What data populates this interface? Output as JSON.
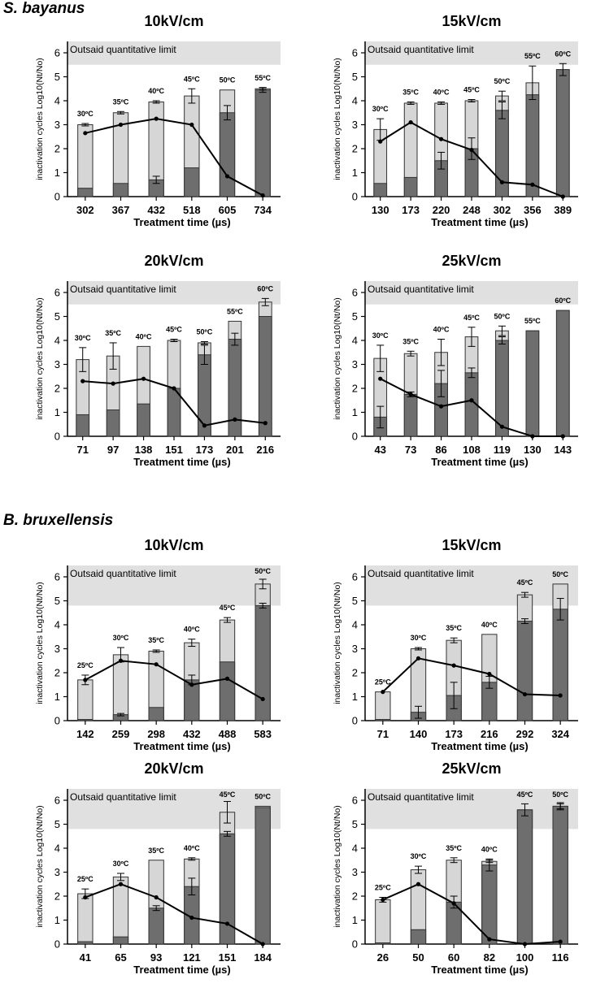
{
  "sections": [
    {
      "title": "S. bayanus"
    },
    {
      "title": "B. bruxellensis"
    }
  ],
  "chart_data": [
    {
      "section": "S. bayanus",
      "type": "bar",
      "stacked": true,
      "title": "10kV/cm",
      "ylabel": "inactivation cycles Log10(Nt/No)",
      "xlabel": "Treatment time (µs)",
      "ylim": [
        0,
        6
      ],
      "yticks": [
        0,
        1,
        2,
        3,
        4,
        5,
        6
      ],
      "limit_y": 5.5,
      "limit_label": "Outsaid quantitative limit",
      "categories": [
        "302",
        "367",
        "432",
        "518",
        "605",
        "734"
      ],
      "temps": [
        "30ºC",
        "35ºC",
        "40ºC",
        "45ºC",
        "50ºC",
        "55ºC"
      ],
      "series": [
        {
          "name": "dark",
          "values": [
            0.35,
            0.55,
            0.7,
            1.2,
            3.5,
            4.45
          ],
          "errors": [
            0,
            0,
            0.15,
            0,
            0.3,
            0.1
          ]
        },
        {
          "name": "total",
          "values": [
            3.0,
            3.5,
            3.95,
            4.2,
            4.45,
            4.5
          ],
          "errors": [
            0.05,
            0.05,
            0.05,
            0.3,
            0,
            0.05
          ]
        },
        {
          "name": "line",
          "values": [
            2.65,
            3.0,
            3.25,
            3.0,
            0.85,
            0.05
          ]
        }
      ]
    },
    {
      "section": "S. bayanus",
      "type": "bar",
      "stacked": true,
      "title": "15kV/cm",
      "ylabel": "inactivation cycles Log10(Nt/No)",
      "xlabel": "Treatment time (µs)",
      "ylim": [
        0,
        6
      ],
      "yticks": [
        0,
        1,
        2,
        3,
        4,
        5,
        6
      ],
      "limit_y": 5.5,
      "limit_label": "Outsaid quantitative limit",
      "categories": [
        "130",
        "173",
        "220",
        "248",
        "302",
        "356",
        "389"
      ],
      "temps": [
        "30ºC",
        "35ºC",
        "40ºC",
        "45ºC",
        "50ºC",
        "55ºC",
        "60ºC"
      ],
      "series": [
        {
          "name": "dark",
          "values": [
            0.55,
            0.8,
            1.5,
            2.0,
            3.6,
            4.25,
            5.3
          ],
          "errors": [
            0,
            0,
            0.35,
            0.45,
            0.35,
            0,
            0.25
          ]
        },
        {
          "name": "total",
          "values": [
            2.8,
            3.9,
            3.9,
            4.0,
            4.2,
            4.75,
            5.3
          ],
          "errors": [
            0.45,
            0.05,
            0.05,
            0.05,
            0.2,
            0.7,
            0
          ]
        },
        {
          "name": "line",
          "values": [
            2.3,
            3.1,
            2.4,
            1.95,
            0.6,
            0.5,
            0.0
          ]
        }
      ]
    },
    {
      "section": "S. bayanus",
      "type": "bar",
      "stacked": true,
      "title": "20kV/cm",
      "ylabel": "inactivation cycles Log10(Nt/No)",
      "xlabel": "Treatment time (µs)",
      "ylim": [
        0,
        6
      ],
      "yticks": [
        0,
        1,
        2,
        3,
        4,
        5,
        6
      ],
      "limit_y": 5.5,
      "limit_label": "Outsaid quantitative limit",
      "categories": [
        "71",
        "97",
        "138",
        "151",
        "173",
        "201",
        "216"
      ],
      "temps": [
        "30ºC",
        "35ºC",
        "40ºC",
        "45ºC",
        "50ºC",
        "55ºC",
        "60ºC"
      ],
      "series": [
        {
          "name": "dark",
          "values": [
            0.9,
            1.1,
            1.35,
            2.0,
            3.4,
            4.05,
            5.0
          ],
          "errors": [
            0,
            0,
            0,
            0,
            0.4,
            0.25,
            0
          ]
        },
        {
          "name": "total",
          "values": [
            3.2,
            3.35,
            3.75,
            4.0,
            3.9,
            4.8,
            5.6
          ],
          "errors": [
            0.5,
            0.55,
            0,
            0.05,
            0.05,
            0,
            0.15
          ]
        },
        {
          "name": "line",
          "values": [
            2.3,
            2.2,
            2.4,
            2.0,
            0.45,
            0.7,
            0.55
          ]
        }
      ]
    },
    {
      "section": "S. bayanus",
      "type": "bar",
      "stacked": true,
      "title": "25kV/cm",
      "ylabel": "inactivation cycles Log10(Nt/No)",
      "xlabel": "Treatment time (µs)",
      "ylim": [
        0,
        6
      ],
      "yticks": [
        0,
        1,
        2,
        3,
        4,
        5,
        6
      ],
      "limit_y": 5.5,
      "limit_label": "Outsaid quantitative limit",
      "categories": [
        "43",
        "73",
        "86",
        "108",
        "119",
        "130",
        "143"
      ],
      "temps": [
        "30ºC",
        "35ºC",
        "40ºC",
        "45ºC",
        "50ºC",
        "55ºC",
        "60ºC"
      ],
      "series": [
        {
          "name": "dark",
          "values": [
            0.8,
            1.75,
            2.2,
            2.65,
            4.0,
            4.4,
            5.25
          ],
          "errors": [
            0.45,
            0.1,
            0.55,
            0.2,
            0.15,
            0,
            0
          ]
        },
        {
          "name": "total",
          "values": [
            3.25,
            3.45,
            3.5,
            4.15,
            4.4,
            4.4,
            5.25
          ],
          "errors": [
            0.55,
            0.1,
            0.55,
            0.4,
            0.2,
            0,
            0
          ]
        },
        {
          "name": "line",
          "values": [
            2.4,
            1.75,
            1.25,
            1.5,
            0.4,
            0.0,
            0.0
          ]
        }
      ]
    },
    {
      "section": "B. bruxellensis",
      "type": "bar",
      "stacked": true,
      "title": "10kV/cm",
      "ylabel": "inactivation cycles Log10(Nt/No)",
      "xlabel": "Treatment time (µs)",
      "ylim": [
        0,
        6
      ],
      "yticks": [
        0,
        1,
        2,
        3,
        4,
        5,
        6
      ],
      "limit_y": 4.8,
      "limit_label": "Outsaid quantitative limit",
      "categories": [
        "142",
        "259",
        "298",
        "432",
        "488",
        "583"
      ],
      "temps": [
        "25ºC",
        "30ºC",
        "35ºC",
        "40ºC",
        "45ºC",
        "50ºC"
      ],
      "series": [
        {
          "name": "dark",
          "values": [
            0.05,
            0.25,
            0.55,
            1.7,
            2.45,
            4.8
          ],
          "errors": [
            0,
            0.05,
            0,
            0.2,
            0,
            0.1
          ]
        },
        {
          "name": "total",
          "values": [
            1.7,
            2.75,
            2.9,
            3.25,
            4.2,
            5.7
          ],
          "errors": [
            0.2,
            0.3,
            0.05,
            0.15,
            0.1,
            0.2
          ]
        },
        {
          "name": "line",
          "values": [
            1.7,
            2.5,
            2.35,
            1.5,
            1.75,
            0.9
          ]
        }
      ]
    },
    {
      "section": "B. bruxellensis",
      "type": "bar",
      "stacked": true,
      "title": "15kV/cm",
      "ylabel": "inactivation cycles Log10(Nt/No)",
      "xlabel": "Treatment time (µs)",
      "ylim": [
        0,
        6
      ],
      "yticks": [
        0,
        1,
        2,
        3,
        4,
        5,
        6
      ],
      "limit_y": 4.8,
      "limit_label": "Outsaid quantitative limit",
      "categories": [
        "71",
        "140",
        "173",
        "216",
        "292",
        "324"
      ],
      "temps": [
        "25ºC",
        "30ºC",
        "35ºC",
        "40ºC",
        "45ºC",
        "50ºC"
      ],
      "series": [
        {
          "name": "dark",
          "values": [
            0.05,
            0.35,
            1.05,
            1.6,
            4.15,
            4.65
          ],
          "errors": [
            0,
            0.25,
            0.55,
            0.25,
            0.1,
            0.45
          ]
        },
        {
          "name": "total",
          "values": [
            1.2,
            3.0,
            3.35,
            3.6,
            5.25,
            5.7
          ],
          "errors": [
            0,
            0.05,
            0.1,
            0,
            0.1,
            0
          ]
        },
        {
          "name": "line",
          "values": [
            1.2,
            2.6,
            2.3,
            1.95,
            1.1,
            1.05
          ]
        }
      ]
    },
    {
      "section": "B. bruxellensis",
      "type": "bar",
      "stacked": true,
      "title": "20kV/cm",
      "ylabel": "inactivation cycles Log10(Nt/No)",
      "xlabel": "Treatment time (µs)",
      "ylim": [
        0,
        6
      ],
      "yticks": [
        0,
        1,
        2,
        3,
        4,
        5,
        6
      ],
      "limit_y": 4.8,
      "limit_label": "Outsaid quantitative limit",
      "categories": [
        "41",
        "65",
        "93",
        "121",
        "151",
        "184"
      ],
      "temps": [
        "25ºC",
        "30ºC",
        "35ºC",
        "40ºC",
        "45ºC",
        "50ºC"
      ],
      "series": [
        {
          "name": "dark",
          "values": [
            0.1,
            0.3,
            1.5,
            2.4,
            4.6,
            5.7
          ],
          "errors": [
            0,
            0,
            0.1,
            0.35,
            0.1,
            0
          ]
        },
        {
          "name": "total",
          "values": [
            2.1,
            2.8,
            3.5,
            3.55,
            5.5,
            5.75
          ],
          "errors": [
            0.2,
            0.15,
            0,
            0.05,
            0.45,
            0
          ]
        },
        {
          "name": "line",
          "values": [
            1.95,
            2.5,
            1.95,
            1.1,
            0.85,
            0.0
          ]
        }
      ]
    },
    {
      "section": "B. bruxellensis",
      "type": "bar",
      "stacked": true,
      "title": "25kV/cm",
      "ylabel": "inactivation cycles Log10(Nt/No)",
      "xlabel": "Treatment time (µs)",
      "ylim": [
        0,
        6
      ],
      "yticks": [
        0,
        1,
        2,
        3,
        4,
        5,
        6
      ],
      "limit_y": 4.8,
      "limit_label": "Outsaid quantitative limit",
      "categories": [
        "26",
        "50",
        "60",
        "82",
        "100",
        "116"
      ],
      "temps": [
        "25ºC",
        "30ºC",
        "35ºC",
        "40ºC",
        "45ºC",
        "50ºC"
      ],
      "series": [
        {
          "name": "dark",
          "values": [
            0.05,
            0.6,
            1.75,
            3.3,
            5.6,
            5.75
          ],
          "errors": [
            0,
            0,
            0.25,
            0.25,
            0,
            0.1
          ]
        },
        {
          "name": "total",
          "values": [
            1.85,
            3.1,
            3.5,
            3.45,
            5.6,
            5.75
          ],
          "errors": [
            0.1,
            0.15,
            0.1,
            0.05,
            0.25,
            0.15
          ]
        },
        {
          "name": "line",
          "values": [
            1.85,
            2.5,
            1.7,
            0.2,
            0.0,
            0.1
          ]
        }
      ]
    }
  ]
}
